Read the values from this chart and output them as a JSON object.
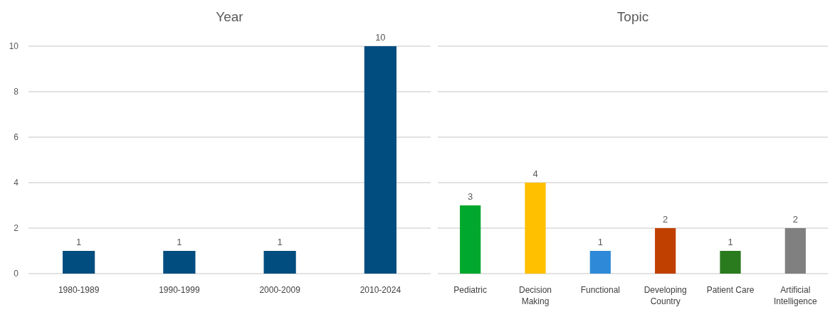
{
  "chart_data": [
    {
      "type": "bar",
      "title": "Year",
      "categories": [
        "1980-1989",
        "1990-1999",
        "2000-2009",
        "2010-2024"
      ],
      "values": [
        1,
        1,
        1,
        10
      ],
      "color": "#014d80",
      "ylim": [
        0,
        10
      ],
      "yticks": [
        0,
        2,
        4,
        6,
        8,
        10
      ],
      "grid": "y",
      "data_labels": true
    },
    {
      "type": "bar",
      "title": "Topic",
      "categories": [
        "Pediatric",
        "Decision Making",
        "Functional",
        "Developing Country",
        "Patient Care",
        "Artificial Intelligence"
      ],
      "values": [
        3,
        4,
        1,
        2,
        1,
        2
      ],
      "colors": [
        "#00a82d",
        "#ffc000",
        "#2e8ad8",
        "#c04000",
        "#2a7a1e",
        "#808080"
      ],
      "ylim": [
        0,
        10
      ],
      "yticks": [
        0,
        2,
        4,
        6,
        8,
        10
      ],
      "grid": "y",
      "data_labels": true,
      "tick_labels": "x"
    }
  ]
}
